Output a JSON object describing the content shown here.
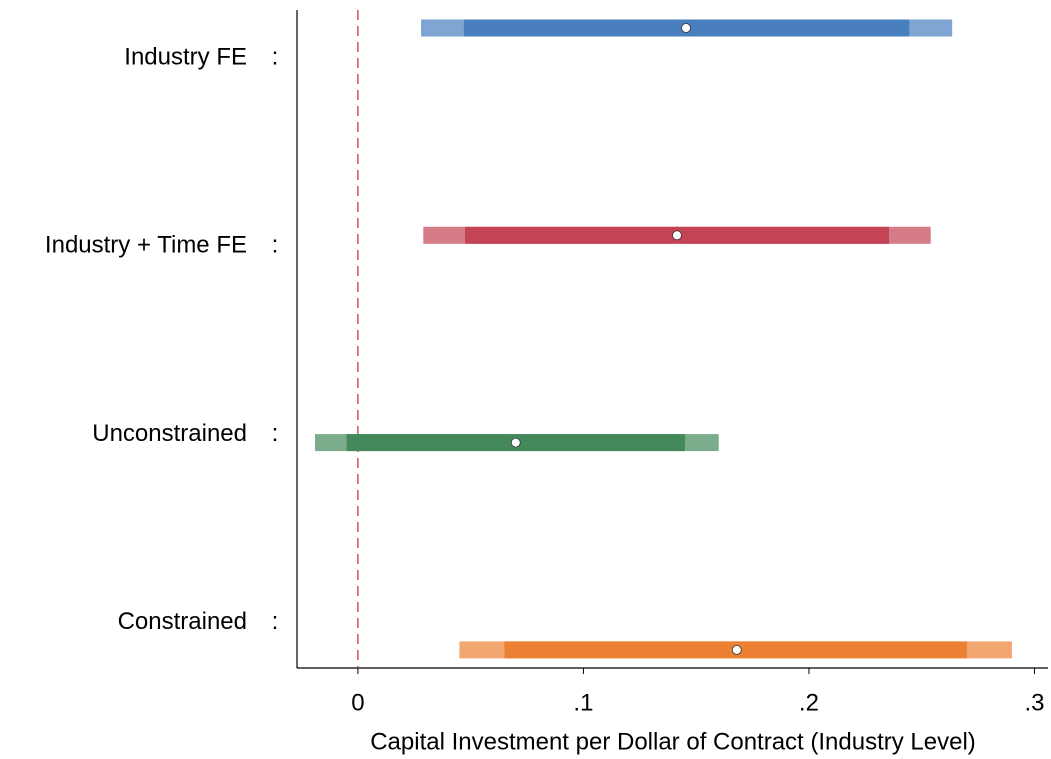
{
  "chart_data": {
    "type": "interval",
    "x_label": "Capital Investment per Dollar of Contract (Industry Level)",
    "separator": ":",
    "xlim": [
      -0.027,
      0.306
    ],
    "xticks": [
      0,
      {
        "value": 0.1,
        "label": ".1"
      },
      {
        "value": 0.2,
        "label": ".2"
      },
      {
        "value": 0.3,
        "label": ".3"
      }
    ],
    "reference_line": 0,
    "reference_color": "#c0392b",
    "series": [
      {
        "name": "Industry FE",
        "color": "#4a7fbf",
        "estimate": 0.1455,
        "ci_inner": [
          0.047,
          0.2445
        ],
        "ci_outer": [
          0.028,
          0.2635
        ]
      },
      {
        "name": "Industry + Time FE",
        "color": "#c44455",
        "estimate": 0.1415,
        "ci_inner": [
          0.0475,
          0.2355
        ],
        "ci_outer": [
          0.029,
          0.254
        ]
      },
      {
        "name": "Unconstrained",
        "color": "#43895a",
        "estimate": 0.07,
        "ci_inner": [
          -0.005,
          0.145
        ],
        "ci_outer": [
          -0.019,
          0.16
        ]
      },
      {
        "name": "Constrained",
        "color": "#ec8033",
        "estimate": 0.168,
        "ci_inner": [
          0.065,
          0.27
        ],
        "ci_outer": [
          0.045,
          0.29
        ]
      }
    ]
  }
}
